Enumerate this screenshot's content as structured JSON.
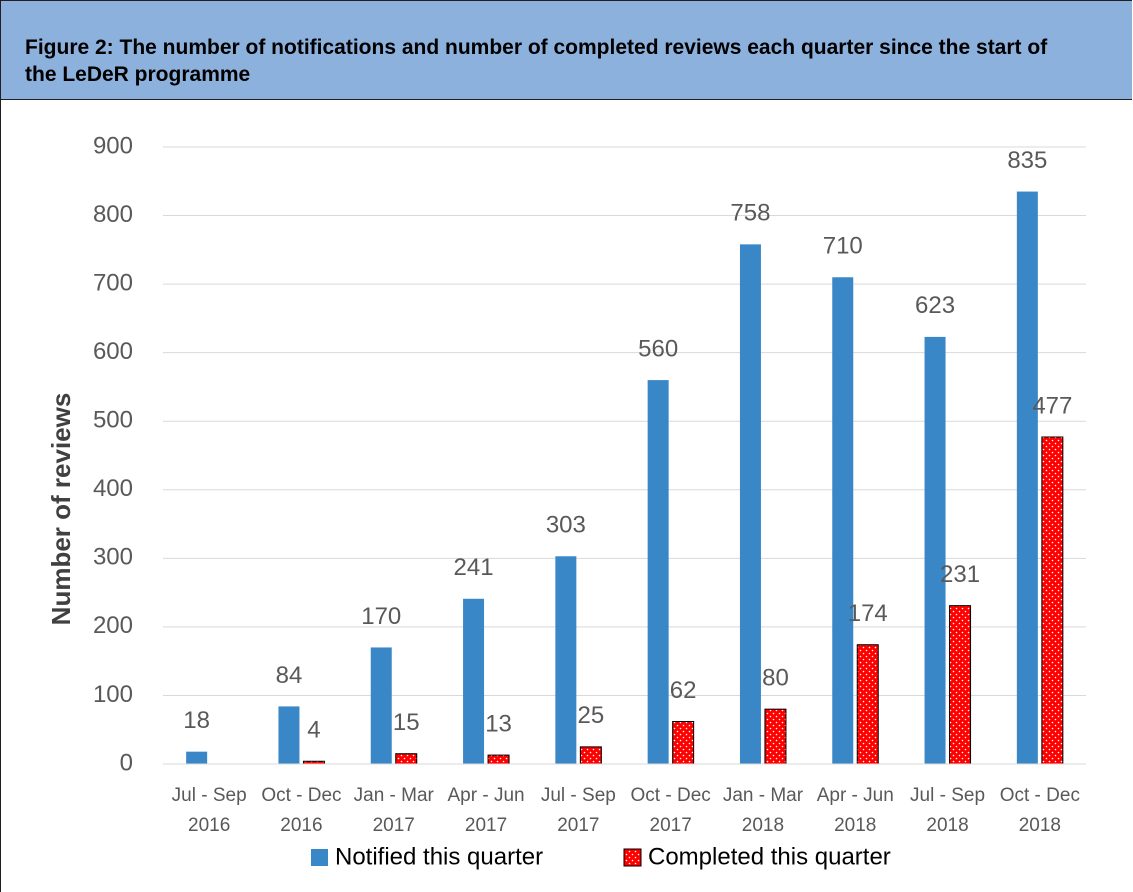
{
  "chart_data": {
    "type": "bar",
    "title": "Figure 2: The number of notifications and number of completed reviews each quarter since the start of the LeDeR programme",
    "y_label": "Number of reviews",
    "categories": [
      [
        "Jul - Sep",
        "2016"
      ],
      [
        "Oct - Dec",
        "2016"
      ],
      [
        "Jan - Mar",
        "2017"
      ],
      [
        "Apr - Jun",
        "2017"
      ],
      [
        "Jul - Sep",
        "2017"
      ],
      [
        "Oct - Dec",
        "2017"
      ],
      [
        "Jan - Mar",
        "2018"
      ],
      [
        "Apr - Jun",
        "2018"
      ],
      [
        "Jul - Sep",
        "2018"
      ],
      [
        "Oct - Dec",
        "2018"
      ]
    ],
    "series": [
      {
        "name": "Notified this quarter",
        "color": "#3a87c8",
        "values": [
          18,
          84,
          170,
          241,
          303,
          560,
          758,
          710,
          623,
          835
        ]
      },
      {
        "name": "Completed this quarter",
        "color": "#ff0000",
        "values": [
          null,
          4,
          15,
          13,
          25,
          62,
          80,
          174,
          231,
          477
        ]
      }
    ],
    "ylim": [
      0,
      900
    ],
    "yticks": [
      0,
      100,
      200,
      300,
      400,
      500,
      600,
      700,
      800,
      900
    ],
    "grid": true,
    "legend": "bottom"
  }
}
